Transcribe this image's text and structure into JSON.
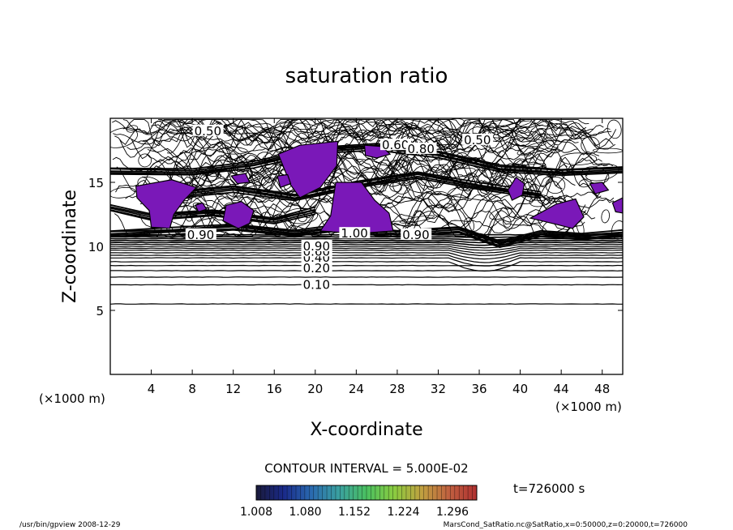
{
  "chart_data": {
    "type": "contour",
    "title": "saturation ratio",
    "xlabel": "X-coordinate",
    "ylabel": "Z-coordinate",
    "x_unit": "(×1000 m)",
    "y_unit": "(×1000 m)",
    "xlim": [
      0,
      50
    ],
    "ylim": [
      0,
      20
    ],
    "x_ticks": [
      4,
      8,
      12,
      16,
      20,
      24,
      28,
      32,
      36,
      40,
      44,
      48
    ],
    "y_ticks": [
      5,
      10,
      15
    ],
    "contour_interval_label": "CONTOUR INTERVAL = 5.000E-02",
    "time_label": "t=726000 s",
    "colorbar_ticks": [
      "1.008",
      "1.080",
      "1.152",
      "1.224",
      "1.296"
    ],
    "contour_labels": [
      {
        "text": "0.10",
        "x": 18.8,
        "z": 7.0
      },
      {
        "text": "0.20",
        "x": 18.8,
        "z": 8.3
      },
      {
        "text": "0.40",
        "x": 18.8,
        "z": 9.1
      },
      {
        "text": "0.60",
        "x": 18.8,
        "z": 9.6
      },
      {
        "text": "0.90",
        "x": 18.8,
        "z": 10.0
      },
      {
        "text": "0.90",
        "x": 7.5,
        "z": 10.9
      },
      {
        "text": "0.90",
        "x": 28.5,
        "z": 10.9
      },
      {
        "text": "1.00",
        "x": 22.5,
        "z": 11.0
      },
      {
        "text": "0.50",
        "x": 8.2,
        "z": 19.0
      },
      {
        "text": "0.60",
        "x": 26.5,
        "z": 17.9
      },
      {
        "text": "0.50",
        "x": 34.5,
        "z": 18.3
      },
      {
        "text": "0.80",
        "x": 29.0,
        "z": 17.6
      }
    ],
    "supersaturated_regions_fill": "#7a18b8",
    "colorbar_colors": [
      "#1a1a3a",
      "#1a2a8a",
      "#2a6ab0",
      "#3aa0a0",
      "#4ac060",
      "#8acc40",
      "#c0a040",
      "#c06040",
      "#b03030"
    ],
    "footer_left": "/usr/bin/gpview   2008-12-29",
    "footer_right": "MarsCond_SatRatio.nc@SatRatio,x=0:50000,z=0:20000,t=726000"
  }
}
